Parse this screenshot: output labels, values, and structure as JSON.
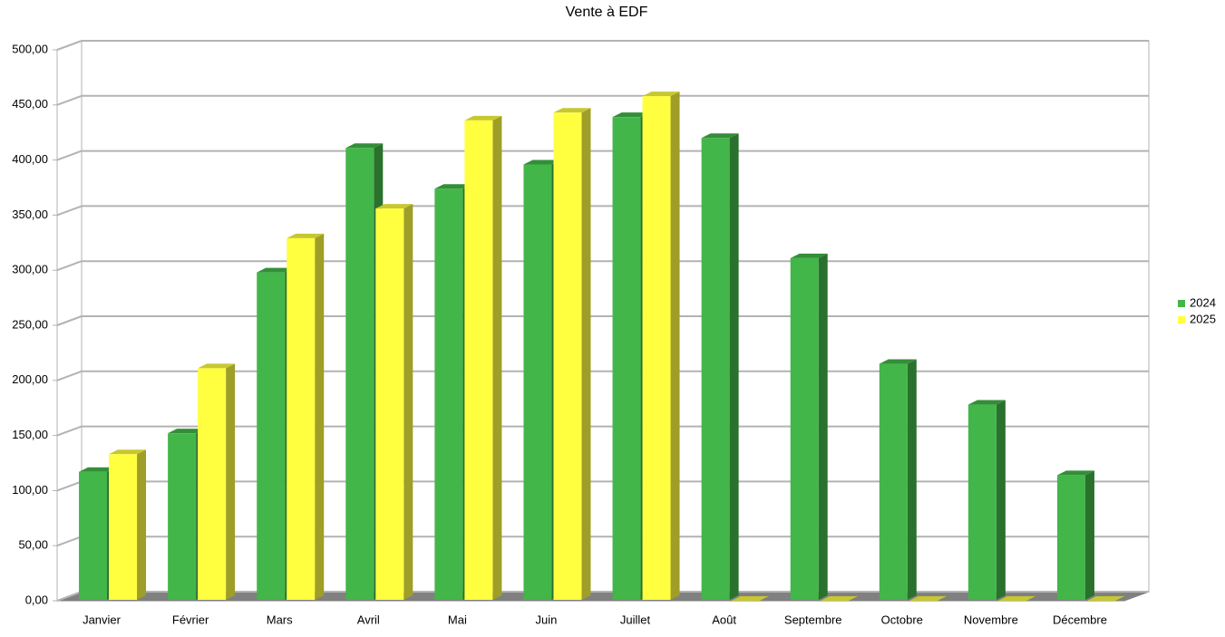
{
  "chart_data": {
    "type": "bar3d",
    "title": "Vente à EDF",
    "categories": [
      "Janvier",
      "Février",
      "Mars",
      "Avril",
      "Mai",
      "Juin",
      "Juillet",
      "Août",
      "Septembre",
      "Octobre",
      "Novembre",
      "Décembre"
    ],
    "series": [
      {
        "name": "2024",
        "color": "#43b649",
        "values": [
          117,
          152,
          298,
          411,
          374,
          396,
          439,
          420,
          311,
          215,
          178,
          114
        ]
      },
      {
        "name": "2025",
        "color": "#ffff40",
        "values": [
          133,
          211,
          329,
          356,
          436,
          443,
          458,
          0,
          0,
          0,
          0,
          0
        ]
      }
    ],
    "ylim": [
      0,
      500
    ],
    "yticks": [
      {
        "value": 0,
        "label": "0,00"
      },
      {
        "value": 50,
        "label": "50,00"
      },
      {
        "value": 100,
        "label": "100,00"
      },
      {
        "value": 150,
        "label": "150,00"
      },
      {
        "value": 200,
        "label": "200,00"
      },
      {
        "value": 250,
        "label": "250,00"
      },
      {
        "value": 300,
        "label": "300,00"
      },
      {
        "value": 350,
        "label": "350,00"
      },
      {
        "value": 400,
        "label": "400,00"
      },
      {
        "value": 450,
        "label": "450,00"
      },
      {
        "value": 500,
        "label": "500,00"
      }
    ],
    "grid": true,
    "legend": "right"
  }
}
